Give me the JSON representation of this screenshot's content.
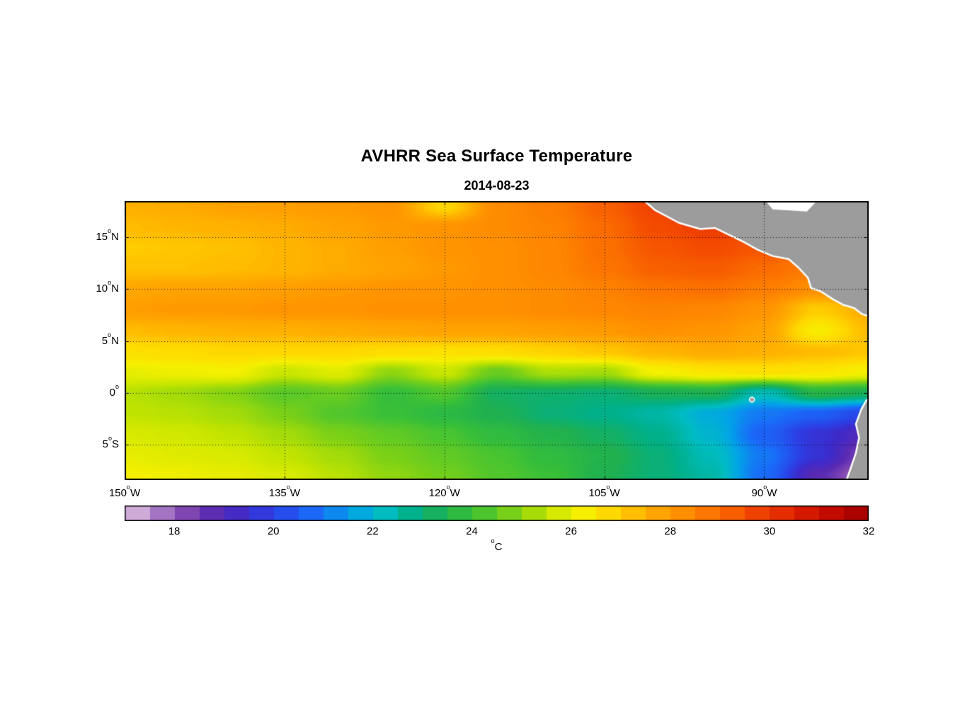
{
  "chart_data": {
    "type": "heatmap",
    "title": "AVHRR Sea Surface Temperature",
    "subtitle": "2014-08-23",
    "x_axis": {
      "min": -150,
      "max": -80.2,
      "ticks": [
        {
          "value": -150,
          "label": "150°W"
        },
        {
          "value": -135,
          "label": "135°W"
        },
        {
          "value": -120,
          "label": "120°W"
        },
        {
          "value": -105,
          "label": "105°W"
        },
        {
          "value": -90,
          "label": "90°W"
        }
      ]
    },
    "y_axis": {
      "min": -8.4,
      "max": 18.5,
      "ticks": [
        {
          "value": 15,
          "label": "15°N"
        },
        {
          "value": 10,
          "label": "10°N"
        },
        {
          "value": 5,
          "label": "5°N"
        },
        {
          "value": 0,
          "label": "0°"
        },
        {
          "value": -5,
          "label": "5°S"
        }
      ]
    },
    "grid": {
      "show": true,
      "style": "dotted",
      "color": "#000000"
    },
    "lons": [
      -150,
      -145,
      -140,
      -135,
      -130,
      -125,
      -120,
      -115,
      -110,
      -105,
      -100,
      -95,
      -90,
      -85,
      -80
    ],
    "lats": [
      18,
      16,
      14,
      12,
      10,
      8,
      6,
      4,
      2,
      0,
      -2,
      -4,
      -6,
      -8
    ],
    "sst_grid_degC": [
      [
        27.5,
        27.6,
        27.8,
        27.9,
        28.0,
        28.1,
        26.8,
        28.3,
        28.6,
        29.2,
        29.8,
        30.0,
        29.8,
        29.5,
        29.3
      ],
      [
        27.3,
        27.4,
        27.5,
        27.6,
        27.8,
        28.0,
        28.1,
        28.3,
        28.5,
        29.0,
        29.6,
        29.9,
        29.7,
        29.4,
        29.2
      ],
      [
        27.0,
        27.1,
        27.2,
        27.4,
        27.6,
        27.9,
        28.1,
        28.2,
        28.4,
        28.9,
        29.4,
        29.6,
        29.4,
        29.0,
        28.8
      ],
      [
        27.2,
        27.2,
        27.3,
        27.4,
        27.6,
        27.8,
        28.0,
        28.2,
        28.4,
        28.8,
        29.2,
        29.3,
        29.0,
        28.6,
        28.4
      ],
      [
        27.7,
        27.8,
        27.8,
        27.9,
        28.0,
        28.1,
        28.1,
        28.2,
        28.3,
        28.5,
        28.8,
        28.9,
        28.6,
        28.2,
        28.0
      ],
      [
        27.9,
        28.0,
        28.0,
        28.1,
        28.1,
        28.2,
        28.2,
        28.2,
        28.3,
        28.4,
        28.5,
        28.4,
        28.1,
        27.0,
        27.6
      ],
      [
        27.3,
        27.4,
        27.5,
        27.5,
        27.6,
        27.7,
        27.8,
        27.8,
        27.9,
        28.0,
        28.2,
        28.1,
        27.8,
        26.3,
        27.3
      ],
      [
        26.6,
        26.7,
        26.8,
        26.8,
        26.8,
        26.7,
        26.6,
        26.7,
        26.9,
        27.1,
        27.4,
        27.6,
        27.5,
        27.3,
        27.1
      ],
      [
        26.0,
        26.1,
        26.2,
        25.6,
        25.9,
        25.0,
        25.6,
        24.6,
        25.3,
        25.2,
        26.2,
        26.5,
        26.6,
        26.5,
        26.2
      ],
      [
        25.4,
        25.2,
        24.9,
        24.4,
        24.6,
        23.9,
        24.3,
        23.2,
        23.1,
        23.0,
        23.3,
        23.4,
        22.3,
        23.6,
        23.3
      ],
      [
        25.5,
        25.4,
        25.2,
        24.8,
        24.3,
        24.0,
        23.7,
        23.4,
        23.0,
        22.8,
        22.5,
        21.8,
        21.0,
        20.6,
        20.0
      ],
      [
        25.8,
        25.7,
        25.5,
        25.2,
        24.8,
        24.5,
        24.2,
        23.8,
        23.5,
        23.2,
        22.8,
        22.0,
        20.6,
        19.6,
        18.9
      ],
      [
        26.0,
        25.9,
        25.8,
        25.5,
        25.2,
        24.8,
        24.5,
        24.2,
        23.8,
        23.5,
        23.0,
        22.3,
        21.0,
        19.6,
        18.2
      ],
      [
        26.2,
        26.1,
        26.0,
        25.8,
        25.4,
        25.0,
        24.7,
        24.3,
        24.0,
        23.4,
        23.0,
        22.5,
        20.8,
        18.8,
        17.5
      ]
    ],
    "colorbar": {
      "min": 17,
      "max": 32,
      "segment_step": 0.5,
      "label": "°C",
      "ticks": [
        18,
        20,
        22,
        24,
        26,
        28,
        30,
        32
      ]
    },
    "colormap_stops": [
      {
        "value": 17.0,
        "color": "#e2c4e2"
      },
      {
        "value": 17.6,
        "color": "#b184cb"
      },
      {
        "value": 18.2,
        "color": "#8148b2"
      },
      {
        "value": 18.8,
        "color": "#5a2ab2"
      },
      {
        "value": 19.4,
        "color": "#3d2aca"
      },
      {
        "value": 20.0,
        "color": "#2a42e8"
      },
      {
        "value": 20.8,
        "color": "#1a6af8"
      },
      {
        "value": 21.6,
        "color": "#02a2e8"
      },
      {
        "value": 22.2,
        "color": "#00bcc2"
      },
      {
        "value": 22.8,
        "color": "#00b08a"
      },
      {
        "value": 23.4,
        "color": "#1fb050"
      },
      {
        "value": 24.0,
        "color": "#39c038"
      },
      {
        "value": 24.8,
        "color": "#7ad018"
      },
      {
        "value": 25.5,
        "color": "#c2e400"
      },
      {
        "value": 26.2,
        "color": "#f6f000"
      },
      {
        "value": 26.8,
        "color": "#ffd800"
      },
      {
        "value": 27.5,
        "color": "#ffb000"
      },
      {
        "value": 28.2,
        "color": "#ff9000"
      },
      {
        "value": 28.9,
        "color": "#fb7000"
      },
      {
        "value": 29.6,
        "color": "#f34a00"
      },
      {
        "value": 30.3,
        "color": "#e32a00"
      },
      {
        "value": 31.0,
        "color": "#cb1000"
      },
      {
        "value": 31.5,
        "color": "#b70400"
      },
      {
        "value": 32.0,
        "color": "#9f0000"
      }
    ],
    "land": {
      "color": "#9c9c9c",
      "outline_color": "#ffffff",
      "polygons": {
        "central_america": [
          [
            -101.8,
            19.0
          ],
          [
            -100.2,
            17.6
          ],
          [
            -98.0,
            16.4
          ],
          [
            -96.0,
            15.8
          ],
          [
            -94.6,
            15.9
          ],
          [
            -93.0,
            15.1
          ],
          [
            -92.0,
            14.6
          ],
          [
            -90.6,
            13.8
          ],
          [
            -89.2,
            13.2
          ],
          [
            -87.7,
            12.9
          ],
          [
            -86.8,
            12.1
          ],
          [
            -85.9,
            11.1
          ],
          [
            -85.6,
            10.1
          ],
          [
            -84.7,
            9.8
          ],
          [
            -83.5,
            9.0
          ],
          [
            -82.6,
            8.5
          ],
          [
            -81.6,
            8.2
          ],
          [
            -80.8,
            7.6
          ],
          [
            -79.6,
            7.2
          ],
          [
            -79.6,
            19.0
          ]
        ],
        "south_america": [
          [
            -79.6,
            -0.2
          ],
          [
            -80.4,
            -0.7
          ],
          [
            -80.9,
            -1.6
          ],
          [
            -81.4,
            -3.0
          ],
          [
            -81.1,
            -4.3
          ],
          [
            -81.4,
            -5.8
          ],
          [
            -82.0,
            -7.6
          ],
          [
            -82.5,
            -9.0
          ],
          [
            -79.6,
            -9.0
          ]
        ]
      },
      "white_patches": [
        [
          [
            -90.3,
            19.0
          ],
          [
            -84.6,
            19.0
          ],
          [
            -86.0,
            17.5
          ],
          [
            -89.2,
            17.7
          ]
        ]
      ],
      "islands": [
        {
          "name": "galapagos",
          "lon": -91.15,
          "lat": -0.65,
          "radius_px": 3.5
        }
      ]
    }
  }
}
